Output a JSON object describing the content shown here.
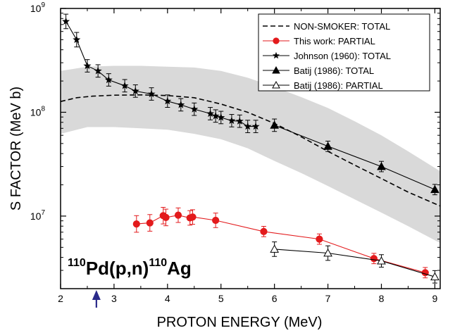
{
  "chart_data": {
    "type": "line",
    "title": "",
    "xlabel": "PROTON ENERGY (MeV)",
    "ylabel": "S FACTOR (MeV b)",
    "xlim": [
      2,
      9.1
    ],
    "ylim": [
      2000000,
      1000000000
    ],
    "yscale": "log",
    "xticks": [
      2,
      3,
      4,
      5,
      6,
      7,
      8,
      9
    ],
    "xtick_labels": [
      "2",
      "3",
      "4",
      "5",
      "6",
      "7",
      "8",
      "9"
    ],
    "yticks": [
      10000000,
      100000000,
      1000000000
    ],
    "ytick_labels": [
      {
        "base": "10",
        "exp": "7"
      },
      {
        "base": "10",
        "exp": "8"
      },
      {
        "base": "10",
        "exp": "9"
      }
    ],
    "grid": false,
    "legend_position": "top-right",
    "annotation": {
      "mass1": "110",
      "mid": "Pd(p,n)",
      "mass2": "110",
      "end": "Ag"
    },
    "arrow_marker": {
      "x": 2.67,
      "color": "#2a2a8a"
    },
    "band": {
      "color": "#d9d9d9",
      "x": [
        2,
        2.5,
        3,
        3.5,
        4,
        4.5,
        5,
        5.5,
        6,
        6.5,
        7,
        7.5,
        8,
        8.5,
        9.1
      ],
      "upper": [
        250000000,
        275000000,
        280000000,
        280000000,
        275000000,
        270000000,
        250000000,
        215000000,
        175000000,
        140000000,
        110000000,
        82000000,
        60000000,
        42000000,
        27000000
      ],
      "lower": [
        62000000,
        72000000,
        72000000,
        70000000,
        68000000,
        62000000,
        55000000,
        45000000,
        34000000,
        26000000,
        19500000,
        14500000,
        10800000,
        8000000,
        5500000
      ]
    },
    "series": [
      {
        "name": "NON-SMOKER: TOTAL",
        "style": "dashed",
        "color": "#000000",
        "marker": "none",
        "x": [
          2,
          2.3,
          2.6,
          3,
          3.5,
          4,
          4.5,
          5,
          5.5,
          6,
          6.5,
          7,
          7.5,
          8,
          8.5,
          9.1
        ],
        "y": [
          127000000,
          138000000,
          143000000,
          146000000,
          147000000,
          145000000,
          138000000,
          120000000,
          100000000,
          78000000,
          58000000,
          42000000,
          31000000,
          23000000,
          17000000,
          12500000
        ]
      },
      {
        "name": "This work: PARTIAL",
        "style": "solid",
        "color": "#e31a1c",
        "marker": "circle-filled",
        "x": [
          3.42,
          3.67,
          3.92,
          3.97,
          4.2,
          4.42,
          4.47,
          4.9,
          5.8,
          6.84,
          7.86,
          8.82
        ],
        "y": [
          8400000,
          8600000,
          10100000,
          9700000,
          10200000,
          9600000,
          9800000,
          9100000,
          7100000,
          6000000,
          3900000,
          2850000
        ],
        "err": [
          0.08,
          0.08,
          0.08,
          0.08,
          0.07,
          0.07,
          0.07,
          0.07,
          0.05,
          0.05,
          0.05,
          0.05
        ]
      },
      {
        "name": "Johnson (1960): TOTAL",
        "style": "solid",
        "color": "#000000",
        "marker": "star",
        "x": [
          2.1,
          2.3,
          2.5,
          2.7,
          2.9,
          3.2,
          3.4,
          3.7,
          4.0,
          4.25,
          4.5,
          4.8,
          4.9,
          5.0,
          5.2,
          5.35,
          5.5,
          5.65
        ],
        "y": [
          750000000,
          500000000,
          280000000,
          250000000,
          205000000,
          180000000,
          160000000,
          150000000,
          128000000,
          118000000,
          107000000,
          97000000,
          92000000,
          89000000,
          83000000,
          82000000,
          73000000,
          73000000
        ],
        "err": [
          0.07,
          0.07,
          0.06,
          0.06,
          0.06,
          0.06,
          0.06,
          0.06,
          0.06,
          0.06,
          0.06,
          0.06,
          0.06,
          0.06,
          0.06,
          0.06,
          0.06,
          0.06
        ]
      },
      {
        "name": "Batij (1986): TOTAL",
        "style": "solid",
        "color": "#000000",
        "marker": "triangle-filled",
        "x": [
          6.0,
          7.0,
          8.0,
          9.0
        ],
        "y": [
          75000000,
          47000000,
          30000000,
          18000000
        ],
        "err": [
          0.06,
          0.05,
          0.05,
          0.05
        ]
      },
      {
        "name": "Batij (1986): PARTIAL",
        "style": "solid",
        "color": "#000000",
        "marker": "triangle-open",
        "x": [
          6.0,
          7.0,
          8.0,
          9.0
        ],
        "y": [
          4800000,
          4400000,
          3700000,
          2600000
        ],
        "err": [
          0.07,
          0.07,
          0.06,
          0.06
        ]
      }
    ]
  }
}
